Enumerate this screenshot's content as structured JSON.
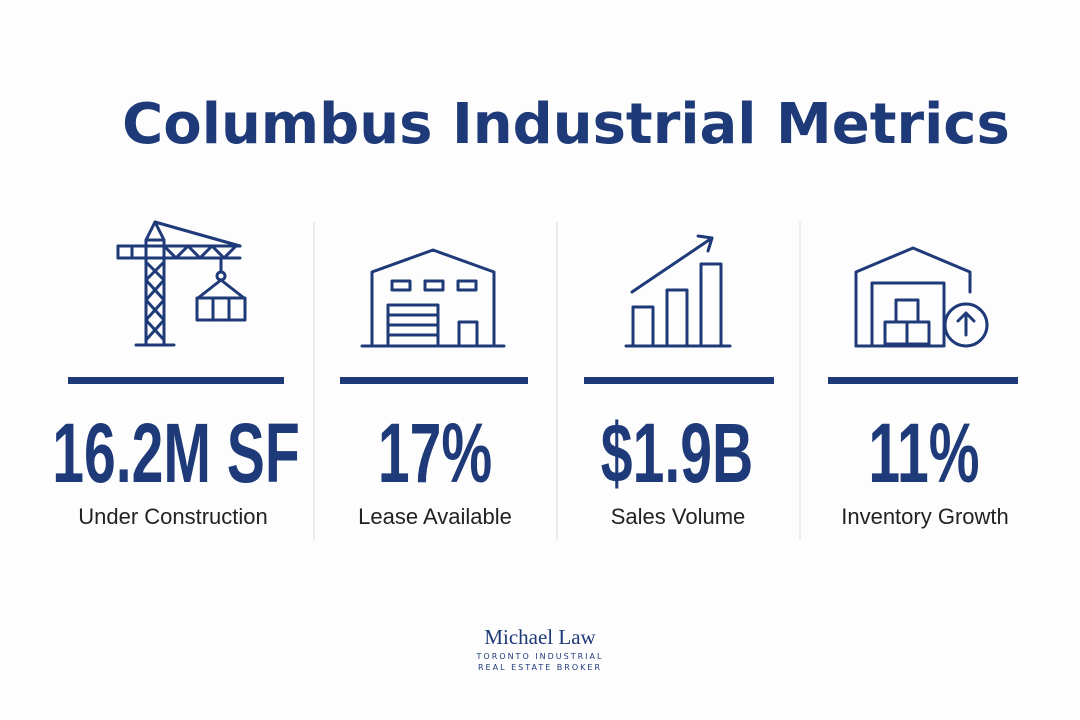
{
  "header": {
    "title": "Columbus Industrial Metrics"
  },
  "metrics": [
    {
      "value": "16.2M SF",
      "label": "Under Construction"
    },
    {
      "value": "17%",
      "label": "Lease Available"
    },
    {
      "value": "$1.9B",
      "label": "Sales Volume"
    },
    {
      "value": "11%",
      "label": "Inventory Growth"
    }
  ],
  "footer": {
    "name": "Michael Law",
    "tagline": [
      "TORONTO INDUSTRIAL",
      "REAL ESTATE BROKER"
    ]
  }
}
